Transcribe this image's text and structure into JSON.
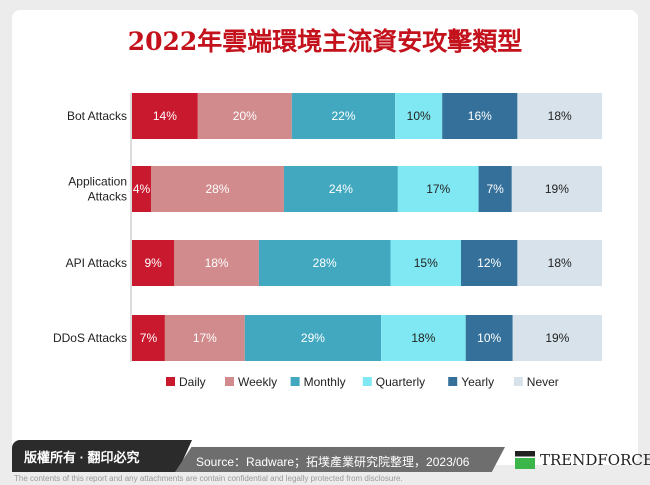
{
  "title": "2022年雲端環境主流資安攻擊類型",
  "chart_data": {
    "type": "bar",
    "orientation": "horizontal",
    "stacked": "100%",
    "title": "2022年雲端環境主流資安攻擊類型",
    "categories": [
      "Bot Attacks",
      "Application Attacks",
      "API Attacks",
      "DDoS Attacks"
    ],
    "category_lines": [
      [
        "Bot Attacks"
      ],
      [
        "Application",
        "Attacks"
      ],
      [
        "API Attacks"
      ],
      [
        "DDoS Attacks"
      ]
    ],
    "series": [
      {
        "name": "Daily",
        "color": "#c8192e",
        "values": [
          14,
          4,
          9,
          7
        ]
      },
      {
        "name": "Weekly",
        "color": "#d18b8c",
        "values": [
          20,
          28,
          18,
          17
        ]
      },
      {
        "name": "Monthly",
        "color": "#41a8c0",
        "values": [
          22,
          24,
          28,
          29
        ]
      },
      {
        "name": "Quarterly",
        "color": "#80e8f2",
        "values": [
          10,
          17,
          15,
          18
        ]
      },
      {
        "name": "Yearly",
        "color": "#34709a",
        "values": [
          16,
          7,
          12,
          10
        ]
      },
      {
        "name": "Never",
        "color": "#d7e2ea",
        "values": [
          18,
          19,
          18,
          19
        ]
      }
    ],
    "value_suffix": "%",
    "legend": "bottom",
    "grid": false
  },
  "footer": {
    "copyright": "版權所有 · 翻印必究",
    "source": "Source：Radware；拓墣產業研究院整理，2023/06",
    "logo": "TRENDFORCE",
    "disclaimer": "The contents of this report and any attachments are contain confidential and legally protected from disclosure."
  }
}
